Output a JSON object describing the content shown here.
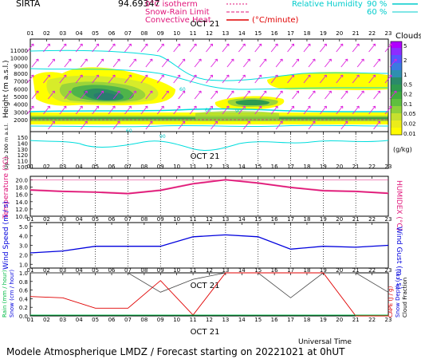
{
  "header": {
    "station": "SIRTA",
    "coords": "94.69347",
    "legend_iso": "0°C isotherm",
    "legend_snow": "Snow-Rain Limit",
    "legend_conv": "Convective Heat",
    "legend_conv_unit": "(°C/minute)",
    "legend_rh": "Relative Humidity",
    "rh_90": "90 %",
    "rh_60": "60 %"
  },
  "hours": [
    "01",
    "02",
    "03",
    "04",
    "05",
    "06",
    "07",
    "08",
    "09",
    "10",
    "11",
    "12",
    "13",
    "14",
    "15",
    "16",
    "17",
    "18",
    "19",
    "20",
    "21",
    "22",
    "23"
  ],
  "date_label": "OCT 21",
  "footer": {
    "universal_time": "Universal Time",
    "title": "Modele Atmospherique LMDZ / Forecast starting on 20221021 at 0hUT"
  },
  "colors": {
    "pink": "#e0157a",
    "red": "#e00000",
    "cyan": "#00e0e0",
    "magenta": "#dd22dd",
    "blue": "#0000dd",
    "green": "#00bb44"
  },
  "chart_data": [
    {
      "type": "heatmap",
      "panel": "clouds",
      "ylabel": "Height (m a.s.l.)",
      "ylabel_low": "Up to 200 m a.s.l.",
      "y_ticks_upper": [
        "11000",
        "10000",
        "9000",
        "8000",
        "7000",
        "6000",
        "5000",
        "4000",
        "3000",
        "2000"
      ],
      "y_ticks_lower": [
        "150",
        "140",
        "130",
        "120",
        "110",
        "100"
      ],
      "colorbar_title": "Clouds",
      "colorbar_unit": "(g/kg)",
      "colorbar_ticks": [
        "1",
        "0.5",
        "0.2",
        "0.1",
        "0.05",
        "0.02",
        "0.01"
      ],
      "colorbar_extra": [
        "5",
        "2"
      ],
      "cloud_layers": [
        {
          "name": "mid-level",
          "hour_start": 1.2,
          "hour_end": 11.5,
          "base_m": 4200,
          "top_m": 7600,
          "max_g_kg": 0.5
        },
        {
          "name": "upper",
          "hour_start": 15.8,
          "hour_end": 23,
          "base_m": 5000,
          "top_m": 7600,
          "max_g_kg": 0.05
        },
        {
          "name": "low",
          "hour_start": 1,
          "hour_end": 23,
          "base_m": 2200,
          "top_m": 3600,
          "max_g_kg": 0.2
        }
      ],
      "contour_labels": [
        "60",
        "90",
        "60",
        "90",
        "60"
      ]
    },
    {
      "type": "line",
      "panel": "temperature",
      "ylabel": "Temperature (°C)",
      "ylabel_right": "HUMIDEX (°C)",
      "y_ticks": [
        "20.0",
        "18.0",
        "16.0",
        "14.0",
        "12.0",
        "10.0"
      ],
      "ylim": [
        10,
        21
      ],
      "x": [
        1,
        3,
        5,
        7,
        9,
        11,
        13,
        15,
        17,
        19,
        21,
        23
      ],
      "temperature": [
        17.2,
        16.8,
        16.6,
        16.2,
        17.1,
        18.9,
        20.0,
        19.1,
        17.9,
        17.0,
        16.8,
        16.3
      ],
      "humidex": [
        17.4,
        17.0,
        16.8,
        16.4,
        17.3,
        19.1,
        20.2,
        19.3,
        18.1,
        17.2,
        17.0,
        16.5
      ]
    },
    {
      "type": "line",
      "panel": "wind",
      "ylabel": "Wind Speed (m / s)",
      "ylabel_right": "Wind Gust (m / s)",
      "y_ticks": [
        "5.0",
        "4.0",
        "3.0",
        "2.0",
        "1.0"
      ],
      "ylim": [
        0.6,
        5.4
      ],
      "x": [
        1,
        3,
        5,
        7,
        9,
        11,
        13,
        15,
        17,
        19,
        21,
        23
      ],
      "wind_speed": [
        2.2,
        2.4,
        2.9,
        2.9,
        2.9,
        3.9,
        4.1,
        3.9,
        2.6,
        2.9,
        2.8,
        3.0
      ]
    },
    {
      "type": "line",
      "panel": "precipitation",
      "ylabel_rain": "Rain (mm / hour)",
      "ylabel_snow": "Snow (cm / hour)",
      "ylabel_right_1": "CAPE (J / g)",
      "ylabel_right_2": "Snow Depth (cm)",
      "ylabel_right_3": "Cloud Fraction",
      "y_ticks": [
        "1.0",
        "0.8",
        "0.6",
        "0.4",
        "0.2",
        "0.0"
      ],
      "ylim": [
        0,
        1
      ],
      "x": [
        1,
        3,
        5,
        7,
        9,
        11,
        13,
        15,
        17,
        19,
        21,
        23
      ],
      "rain": [
        0.45,
        0.42,
        0.18,
        0.18,
        0.82,
        0.02,
        1.0,
        1.0,
        1.0,
        1.0,
        0.0,
        0.0
      ],
      "cloud_fraction": [
        1.0,
        1.0,
        1.0,
        1.0,
        0.55,
        0.85,
        1.0,
        1.0,
        0.42,
        1.0,
        1.0,
        0.55
      ]
    }
  ]
}
